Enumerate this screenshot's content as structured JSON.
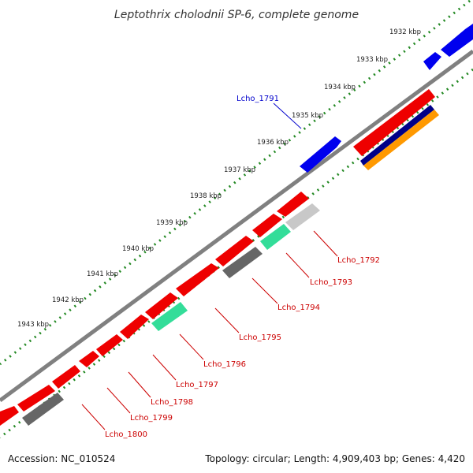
{
  "title": "Leptothrix cholodnii SP-6, complete genome",
  "footer": {
    "accession": "Accession: NC_010524",
    "summary": "Topology: circular; Length: 4,909,403 bp; Genes: 4,420"
  },
  "ticks": [
    {
      "label": "1932 kbp"
    },
    {
      "label": "1933 kbp"
    },
    {
      "label": "1934 kbp"
    },
    {
      "label": "1935 kbp"
    },
    {
      "label": "1936 kbp"
    },
    {
      "label": "1937 kbp"
    },
    {
      "label": "1938 kbp"
    },
    {
      "label": "1939 kbp"
    },
    {
      "label": "1940 kbp"
    },
    {
      "label": "1941 kbp"
    },
    {
      "label": "1942 kbp"
    },
    {
      "label": "1943 kbp"
    }
  ],
  "gene_labels": [
    {
      "text": "Lcho_1791",
      "color": "#0000cc"
    },
    {
      "text": "Lcho_1792",
      "color": "#cc0000"
    },
    {
      "text": "Lcho_1793",
      "color": "#cc0000"
    },
    {
      "text": "Lcho_1794",
      "color": "#cc0000"
    },
    {
      "text": "Lcho_1795",
      "color": "#cc0000"
    },
    {
      "text": "Lcho_1796",
      "color": "#cc0000"
    },
    {
      "text": "Lcho_1797",
      "color": "#cc0000"
    },
    {
      "text": "Lcho_1798",
      "color": "#cc0000"
    },
    {
      "text": "Lcho_1799",
      "color": "#cc0000"
    },
    {
      "text": "Lcho_1800",
      "color": "#cc0000"
    }
  ],
  "colors": {
    "forward_gene": "#0000ee",
    "reverse_gene": "#ee0000",
    "backbone": "#808080",
    "tick_major": "#228822",
    "tick_minor": "#117711",
    "feature_gray": "#666666",
    "feature_lightgray": "#c8c8c8",
    "feature_teal": "#33dd99",
    "feature_navy": "#000088",
    "feature_orange": "#ff9900"
  }
}
